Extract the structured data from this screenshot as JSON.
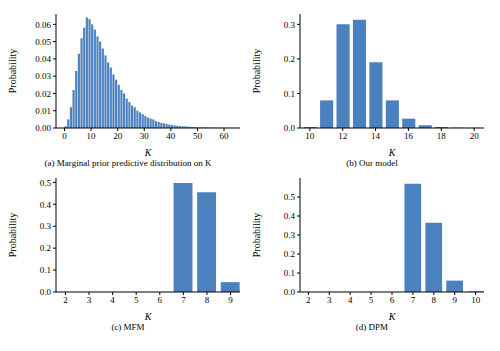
{
  "chart_data": [
    {
      "type": "histogram",
      "title": "(a) Marginal prior predictive distribution on K",
      "xlabel": "K",
      "ylabel": "Probability",
      "color": "#4c81bf",
      "bins": [
        0,
        1,
        2,
        3,
        4,
        5,
        6,
        7,
        8,
        9,
        10,
        11,
        12,
        13,
        14,
        15,
        16,
        17,
        18,
        19,
        20,
        21,
        22,
        23,
        24,
        25,
        26,
        27,
        28,
        29,
        30,
        31,
        32,
        33,
        34,
        35,
        36,
        37,
        38,
        39,
        40,
        41,
        42,
        43,
        44,
        45,
        46,
        47,
        48,
        49,
        50,
        51,
        52,
        53,
        54,
        55,
        56,
        57,
        58,
        59,
        60,
        61,
        62,
        63,
        64,
        65
      ],
      "values": [
        0.001,
        0.005,
        0.012,
        0.022,
        0.033,
        0.043,
        0.052,
        0.058,
        0.064,
        0.063,
        0.06,
        0.057,
        0.053,
        0.05,
        0.046,
        0.042,
        0.038,
        0.035,
        0.031,
        0.028,
        0.025,
        0.022,
        0.02,
        0.017,
        0.015,
        0.013,
        0.012,
        0.01,
        0.009,
        0.008,
        0.007,
        0.006,
        0.0055,
        0.005,
        0.004,
        0.0035,
        0.003,
        0.0027,
        0.0023,
        0.002,
        0.0017,
        0.0015,
        0.0013,
        0.0011,
        0.001,
        0.0009,
        0.0008,
        0.0007,
        0.0006,
        0.0005,
        0.0004,
        0.0004,
        0.0003,
        0.0003,
        0.0003,
        0.0002,
        0.0002,
        0.0002,
        0.0002,
        0.0001,
        0.0001,
        0.0001,
        0.0001,
        0.0001,
        0.0001
      ],
      "xlim": [
        -3.2,
        66
      ],
      "xticks": [
        0,
        10,
        20,
        30,
        40,
        50,
        60
      ],
      "ylim": [
        0,
        0.066
      ],
      "yticks": [
        {
          "value": 0,
          "label": "0.00"
        },
        0.01,
        0.02,
        0.03,
        0.04,
        0.05,
        0.06
      ]
    },
    {
      "type": "bar",
      "title": "(b) Our model",
      "xlabel": "K",
      "ylabel": "Probability",
      "color": "#4c81bf",
      "x": [
        10,
        11,
        12,
        13,
        14,
        15,
        16,
        17,
        18,
        19,
        20
      ],
      "values": [
        0.003,
        0.08,
        0.3,
        0.313,
        0.19,
        0.08,
        0.027,
        0.008,
        0.003,
        0.001,
        0.0005
      ],
      "xlim": [
        9.4,
        20.6
      ],
      "xticks": [
        10,
        12,
        14,
        16,
        18,
        20
      ],
      "ylim": [
        0,
        0.33
      ],
      "yticks": [
        {
          "value": 0,
          "label": "0.0"
        },
        0.1,
        0.2,
        0.3
      ]
    },
    {
      "type": "bar",
      "title": "(c) MFM",
      "xlabel": "K",
      "ylabel": "Probability",
      "color": "#4c81bf",
      "x": [
        2,
        3,
        4,
        5,
        6,
        7,
        8,
        9
      ],
      "values": [
        0,
        0,
        0,
        0,
        0,
        0.497,
        0.455,
        0.045
      ],
      "xlim": [
        1.6,
        9.4
      ],
      "xticks": [
        2,
        3,
        4,
        5,
        6,
        7,
        8,
        9
      ],
      "ylim": [
        0,
        0.52
      ],
      "yticks": [
        {
          "value": 0,
          "label": "0.0"
        },
        0.1,
        0.2,
        0.3,
        0.4,
        0.5
      ]
    },
    {
      "type": "bar",
      "title": "(d) DPM",
      "xlabel": "K",
      "ylabel": "Probability",
      "color": "#4c81bf",
      "x": [
        2,
        3,
        4,
        5,
        6,
        7,
        8,
        9,
        10
      ],
      "values": [
        0,
        0,
        0,
        0,
        0,
        0.57,
        0.365,
        0.06,
        0.003
      ],
      "xlim": [
        1.6,
        10.4
      ],
      "xticks": [
        2,
        3,
        4,
        5,
        6,
        7,
        8,
        9,
        10
      ],
      "ylim": [
        0,
        0.6
      ],
      "yticks": [
        {
          "value": 0,
          "label": "0.0"
        },
        0.1,
        0.2,
        0.3,
        0.4,
        0.5
      ]
    }
  ]
}
